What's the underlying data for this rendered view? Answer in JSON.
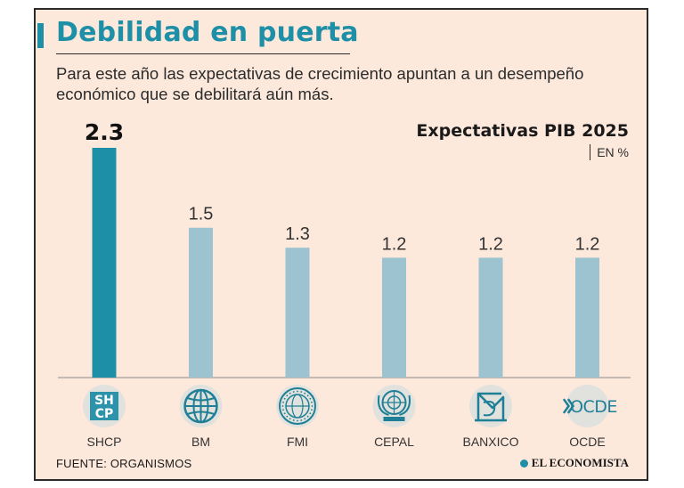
{
  "header": {
    "title": "Debilidad en puerta",
    "subtitle": "Para este año las expectativas de crecimiento apuntan a un desempeño económico que se debilitará aún más."
  },
  "chart_data": {
    "type": "bar",
    "title": "Expectativas PIB 2025",
    "unit": "EN %",
    "categories": [
      "SHCP",
      "BM",
      "FMI",
      "CEPAL",
      "BANXICO",
      "OCDE"
    ],
    "values": [
      2.3,
      1.5,
      1.3,
      1.2,
      1.2,
      1.2
    ],
    "value_labels": [
      "2.3",
      "1.5",
      "1.3",
      "1.2",
      "1.2",
      "1.2"
    ],
    "logos": [
      "SHCP",
      "BM",
      "FMI",
      "CEPAL",
      "BANXICO",
      "OCDE"
    ],
    "ylim": [
      0,
      2.3
    ],
    "xlabel": "",
    "ylabel": "",
    "grid": false,
    "colors": {
      "highlight": "#1d8fa6",
      "default": "#9cc3cf",
      "logo_bg": "#e1e2dd"
    }
  },
  "footer": {
    "source": "FUENTE: ORGANISMOS",
    "brand": "EL ECONOMISTA"
  }
}
